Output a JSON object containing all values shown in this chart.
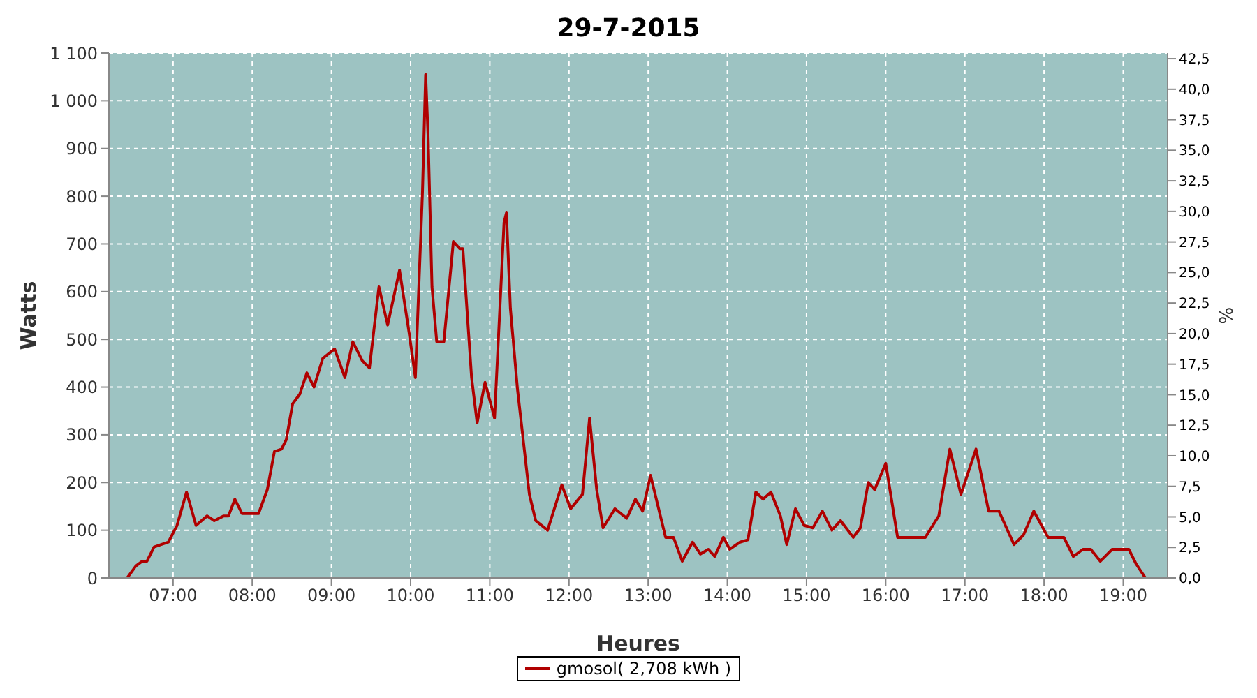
{
  "chart_data": {
    "type": "line",
    "title": "29-7-2015",
    "xlabel": "Heures",
    "ylabel": "Watts",
    "y2label": "%",
    "x": [
      6.42,
      6.53,
      6.61,
      6.67,
      6.76,
      6.94,
      7.05,
      7.17,
      7.29,
      7.43,
      7.52,
      7.64,
      7.7,
      7.78,
      7.87,
      8.08,
      8.19,
      8.28,
      8.37,
      8.43,
      8.51,
      8.6,
      8.69,
      8.78,
      8.89,
      9.04,
      9.17,
      9.27,
      9.39,
      9.48,
      9.6,
      9.71,
      9.86,
      9.98,
      10.06,
      10.15,
      10.19,
      10.22,
      10.27,
      10.33,
      10.42,
      10.54,
      10.62,
      10.66,
      10.77,
      10.84,
      10.94,
      11.06,
      11.18,
      11.21,
      11.26,
      11.35,
      11.5,
      11.58,
      11.73,
      11.91,
      12.02,
      12.17,
      12.26,
      12.35,
      12.43,
      12.58,
      12.73,
      12.84,
      12.93,
      13.03,
      13.22,
      13.32,
      13.43,
      13.56,
      13.66,
      13.76,
      13.84,
      13.95,
      14.03,
      14.16,
      14.26,
      14.36,
      14.45,
      14.55,
      14.67,
      14.75,
      14.86,
      14.97,
      15.08,
      15.2,
      15.32,
      15.43,
      15.59,
      15.68,
      15.78,
      15.86,
      16.0,
      16.15,
      16.26,
      16.5,
      16.67,
      16.81,
      16.95,
      17.14,
      17.3,
      17.43,
      17.62,
      17.74,
      17.87,
      18.05,
      18.25,
      18.37,
      18.49,
      18.59,
      18.71,
      18.86,
      19.07,
      19.16,
      19.28
    ],
    "series": [
      {
        "name": "gmosol( 2,708 kWh )",
        "color": "#b00000",
        "values": [
          0,
          25,
          35,
          35,
          65,
          75,
          110,
          180,
          110,
          130,
          120,
          130,
          130,
          165,
          135,
          135,
          185,
          265,
          270,
          290,
          365,
          385,
          430,
          400,
          460,
          480,
          420,
          495,
          455,
          440,
          610,
          530,
          645,
          515,
          420,
          810,
          1055,
          930,
          610,
          495,
          495,
          705,
          690,
          690,
          420,
          325,
          410,
          335,
          745,
          765,
          565,
          395,
          175,
          120,
          100,
          195,
          145,
          175,
          335,
          185,
          105,
          145,
          125,
          165,
          140,
          215,
          85,
          85,
          35,
          75,
          50,
          60,
          45,
          85,
          60,
          75,
          80,
          180,
          165,
          180,
          130,
          70,
          145,
          110,
          105,
          140,
          100,
          120,
          85,
          105,
          200,
          185,
          240,
          85,
          85,
          85,
          130,
          270,
          175,
          270,
          140,
          140,
          70,
          90,
          140,
          85,
          85,
          45,
          60,
          60,
          35,
          60,
          60,
          30,
          0
        ]
      }
    ],
    "xlim": [
      6.19,
      19.56
    ],
    "xticks": [
      {
        "value": 7,
        "label": "07:00"
      },
      {
        "value": 8,
        "label": "08:00"
      },
      {
        "value": 9,
        "label": "09:00"
      },
      {
        "value": 10,
        "label": "10:00"
      },
      {
        "value": 11,
        "label": "11:00"
      },
      {
        "value": 12,
        "label": "12:00"
      },
      {
        "value": 13,
        "label": "13:00"
      },
      {
        "value": 14,
        "label": "14:00"
      },
      {
        "value": 15,
        "label": "15:00"
      },
      {
        "value": 16,
        "label": "16:00"
      },
      {
        "value": 17,
        "label": "17:00"
      },
      {
        "value": 18,
        "label": "18:00"
      },
      {
        "value": 19,
        "label": "19:00"
      }
    ],
    "ylim": [
      0,
      1100
    ],
    "yticks": [
      0,
      100,
      200,
      300,
      400,
      500,
      600,
      700,
      800,
      900,
      {
        "value": 1000,
        "label": "1 000"
      },
      {
        "value": 1100,
        "label": "1 100"
      }
    ],
    "y2lim": [
      0,
      42.96
    ],
    "y2ticks": [
      {
        "value": 0,
        "label": "0,0"
      },
      {
        "value": 2.5,
        "label": "2,5"
      },
      {
        "value": 5,
        "label": "5,0"
      },
      {
        "value": 7.5,
        "label": "7,5"
      },
      {
        "value": 10,
        "label": "10,0"
      },
      {
        "value": 12.5,
        "label": "12,5"
      },
      {
        "value": 15,
        "label": "15,0"
      },
      {
        "value": 17.5,
        "label": "17,5"
      },
      {
        "value": 20,
        "label": "20,0"
      },
      {
        "value": 22.5,
        "label": "22,5"
      },
      {
        "value": 25,
        "label": "25,0"
      },
      {
        "value": 27.5,
        "label": "27,5"
      },
      {
        "value": 30,
        "label": "30,0"
      },
      {
        "value": 32.5,
        "label": "32,5"
      },
      {
        "value": 35,
        "label": "35,0"
      },
      {
        "value": 37.5,
        "label": "37,5"
      },
      {
        "value": 40,
        "label": "40,0"
      },
      {
        "value": 42.5,
        "label": "42,5"
      }
    ],
    "grid": true,
    "legend": "bottom",
    "marker": "none",
    "line_style": "solid"
  }
}
